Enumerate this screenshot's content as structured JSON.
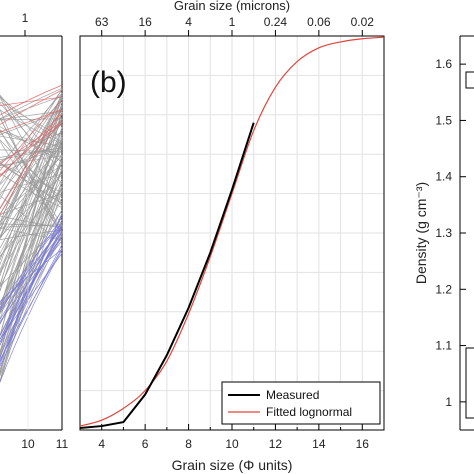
{
  "colors": {
    "measured": "#000000",
    "fitted": "#e0453a",
    "gray_curves": "#999999",
    "red_curves": "#e06060",
    "blue_curves": "#7a7ad8",
    "grid": "#e2e2e2"
  },
  "chart_data": [
    {
      "panel": "left (cropped)",
      "type": "line",
      "top_tick_labels": [
        "1"
      ],
      "x_tick_labels": [
        "10",
        "11"
      ],
      "series_groups": [
        {
          "color": "gray",
          "count_approx": 120
        },
        {
          "color": "red",
          "count_approx": 10
        },
        {
          "color": "blue",
          "count_approx": 25
        }
      ]
    },
    {
      "panel": "(b)",
      "type": "line",
      "panel_label": "(b)",
      "top_axis_label": "Grain size (microns)",
      "top_ticks": [
        {
          "phi": 4,
          "label": "63"
        },
        {
          "phi": 6,
          "label": "16"
        },
        {
          "phi": 8,
          "label": "4"
        },
        {
          "phi": 10,
          "label": "1"
        },
        {
          "phi": 12,
          "label": "0.24"
        },
        {
          "phi": 14,
          "label": "0.06"
        },
        {
          "phi": 16,
          "label": "0.02"
        }
      ],
      "xlabel": "Grain size (Φ units)",
      "x_tick_labels": [
        "4",
        "6",
        "8",
        "10",
        "12",
        "14",
        "16"
      ],
      "xlim": [
        3,
        17
      ],
      "ylim": [
        0,
        1
      ],
      "legend": {
        "position": "bottom-right",
        "entries": [
          "Measured",
          "Fitted lognormal"
        ]
      },
      "series": [
        {
          "name": "Measured",
          "x": [
            3,
            4,
            5,
            6,
            7,
            8,
            9,
            10,
            11
          ],
          "y": [
            0.005,
            0.01,
            0.02,
            0.09,
            0.19,
            0.31,
            0.45,
            0.61,
            0.78
          ]
        },
        {
          "name": "Fitted lognormal",
          "x": [
            3,
            4,
            5,
            6,
            7,
            8,
            9,
            10,
            11,
            12,
            13,
            14,
            15,
            16,
            17
          ],
          "y": [
            0.01,
            0.025,
            0.055,
            0.1,
            0.175,
            0.295,
            0.44,
            0.6,
            0.76,
            0.87,
            0.935,
            0.97,
            0.985,
            0.993,
            0.997
          ]
        }
      ]
    },
    {
      "panel": "right (cropped)",
      "type": "line",
      "ylabel": "Density (g cm⁻³)",
      "y_tick_labels": [
        "1",
        "1.1",
        "1.2",
        "1.3",
        "1.4",
        "1.5",
        "1.6"
      ],
      "ylim": [
        0.95,
        1.65
      ]
    }
  ]
}
